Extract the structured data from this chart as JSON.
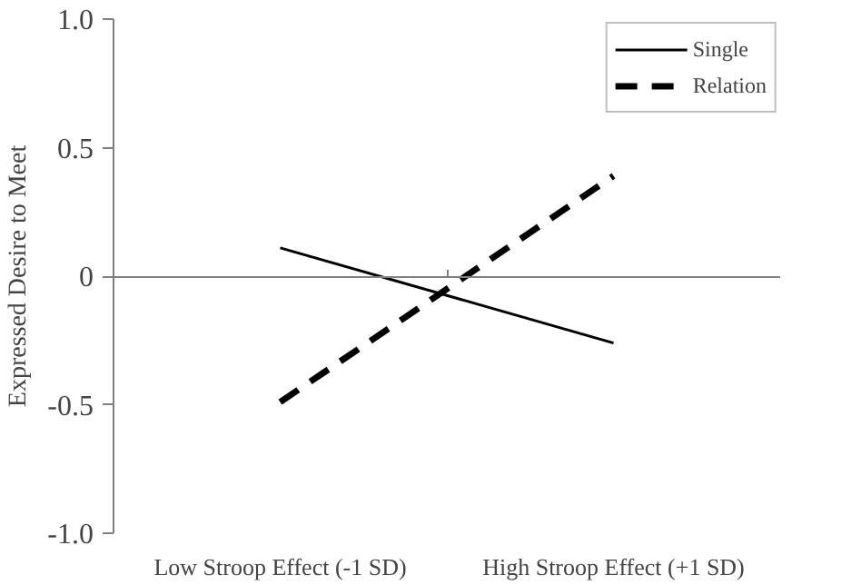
{
  "chart_data": {
    "type": "line",
    "ylabel": "Expressed Desire to Meet",
    "categories": [
      "Low Stroop Effect (-1 SD)",
      "High Stroop Effect (+1 SD)"
    ],
    "series": [
      {
        "name": "Single",
        "color": "#000000",
        "values": [
          0.11,
          -0.26
        ],
        "line_style": "solid"
      },
      {
        "name": "Relation",
        "color": "#000000",
        "values": [
          -0.49,
          0.39
        ],
        "line_style": "dashed"
      }
    ],
    "ylim": [
      -1.0,
      1.0
    ],
    "yticks": [
      {
        "value": 1.0,
        "label": "1.0"
      },
      0.5,
      0,
      -0.5,
      {
        "value": -1.0,
        "label": "-1.0"
      }
    ],
    "legend": "top right",
    "marker": "none"
  }
}
